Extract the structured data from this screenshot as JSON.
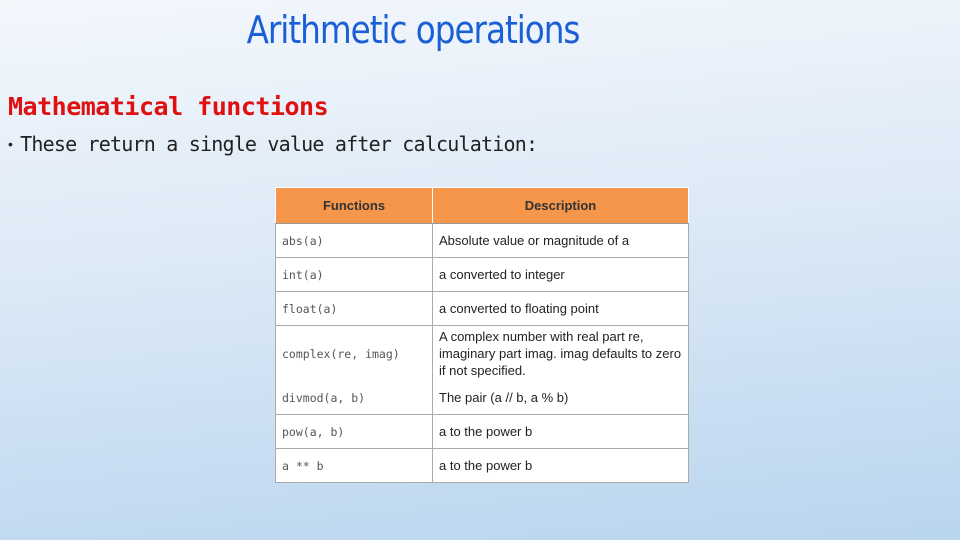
{
  "title": "Arithmetic operations",
  "subtitle": "Mathematical functions",
  "bullet": "These return a single value after calculation:",
  "table": {
    "header": [
      "Functions",
      "Description"
    ],
    "rows": [
      [
        "abs(a)",
        "Absolute value or magnitude of a"
      ],
      [
        "int(a)",
        "a converted to integer"
      ],
      [
        "float(a)",
        "a converted to floating point"
      ],
      [
        "complex(re, imag)",
        "A complex number with real part re, imaginary part imag. imag defaults to zero if not specified."
      ],
      [
        "divmod(a, b)",
        "The pair (a // b, a % b)"
      ],
      [
        "pow(a, b)",
        "a to the power b"
      ],
      [
        "a ** b",
        "a to the power b"
      ]
    ]
  }
}
